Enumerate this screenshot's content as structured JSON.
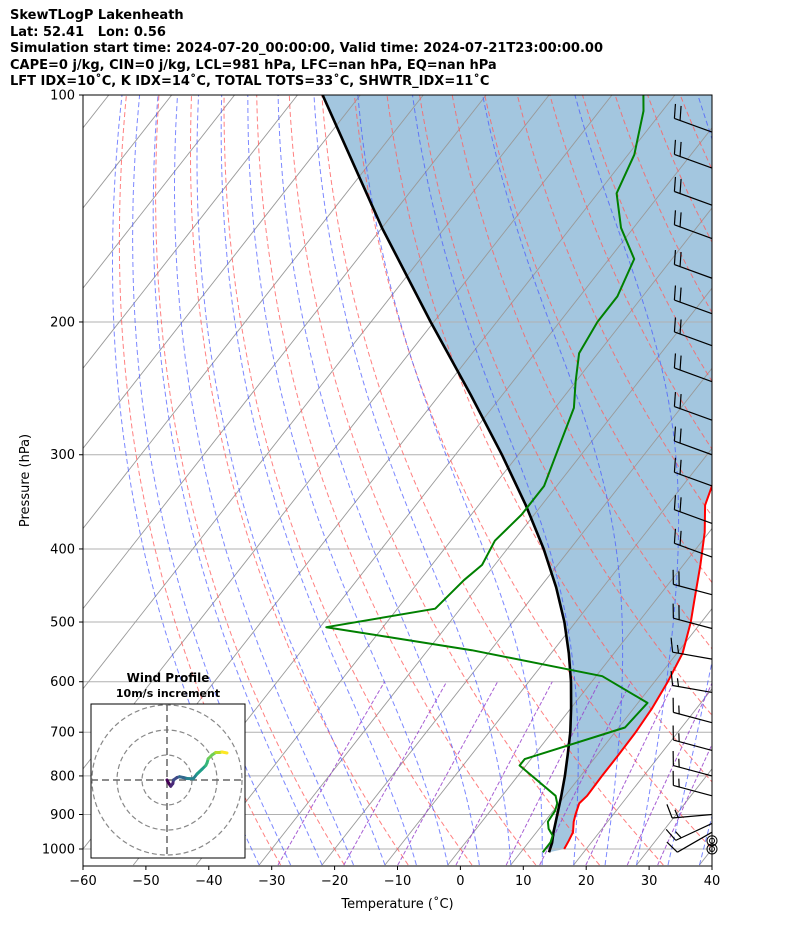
{
  "header": {
    "lines": [
      "SkewTLogP Lakenheath",
      "Lat: 52.41   Lon: 0.56",
      "Simulation start time: 2024-07-20_00:00:00, Valid time: 2024-07-21T23:00:00.00",
      "CAPE=0 j/kg, CIN=0 j/kg, LCL=981 hPa, LFC=nan hPa, EQ=nan hPa",
      "LFT IDX=10˚C, K IDX=14˚C, TOTAL TOTS=33˚C, SHWTR_IDX=11˚C"
    ]
  },
  "chart_data": {
    "type": "line",
    "subtype": "skew-t log-p sounding",
    "xlabel": "Temperature (˚C)",
    "ylabel": "Pressure (hPa)",
    "xlim": [
      -60,
      40
    ],
    "ylim": [
      1050,
      100
    ],
    "y_scale": "log",
    "x_ticks": [
      -60,
      -50,
      -40,
      -30,
      -20,
      -10,
      0,
      10,
      20,
      30,
      40
    ],
    "x_tick_labels": [
      "−60",
      "−50",
      "−40",
      "−30",
      "−20",
      "−10",
      "0",
      "10",
      "20",
      "30",
      "40"
    ],
    "y_ticks": [
      1000,
      900,
      800,
      700,
      600,
      500,
      400,
      300,
      200,
      100
    ],
    "y_tick_labels": [
      "1000",
      "900",
      "800",
      "700",
      "600",
      "500",
      "400",
      "300",
      "200",
      "100"
    ],
    "grid": true,
    "colors": {
      "temperature": "#ff0000",
      "dewpoint": "#008000",
      "parcel": "#000000",
      "shade": "#a3c6df",
      "dry_adiabats": "#ff6060",
      "moist_adiabats": "#4455ff",
      "mixing_ratio": "#9944cc",
      "isotherms": "#999999"
    },
    "series": [
      {
        "key": "temperature",
        "points": [
          [
            16.5,
            1000
          ],
          [
            16.2,
            975
          ],
          [
            15.8,
            950
          ],
          [
            14.6,
            920
          ],
          [
            14,
            900
          ],
          [
            13.2,
            870
          ],
          [
            13.5,
            850
          ],
          [
            13.4,
            800
          ],
          [
            13.4,
            750
          ],
          [
            13.3,
            700
          ],
          [
            12.9,
            650
          ],
          [
            12.1,
            600
          ],
          [
            10.9,
            550
          ],
          [
            8.3,
            500
          ],
          [
            6.3,
            470
          ],
          [
            2.7,
            420
          ],
          [
            -0.7,
            380
          ],
          [
            -4,
            350
          ],
          [
            -6,
            320
          ],
          [
            -7.4,
            300
          ],
          [
            -10,
            280
          ],
          [
            -13,
            260
          ],
          [
            -17,
            240
          ],
          [
            -20.5,
            220
          ],
          [
            -24,
            200
          ],
          [
            -28,
            185
          ],
          [
            -32,
            170
          ],
          [
            -35,
            155
          ],
          [
            -38,
            145
          ],
          [
            -41,
            135
          ],
          [
            -44,
            125
          ],
          [
            -47,
            115
          ],
          [
            -51,
            105
          ],
          [
            -53,
            100
          ]
        ]
      },
      {
        "key": "dewpoint",
        "points": [
          [
            13.5,
            1010
          ],
          [
            13.5,
            980
          ],
          [
            13,
            960
          ],
          [
            11.5,
            940
          ],
          [
            10.5,
            920
          ],
          [
            10.3,
            890
          ],
          [
            9.7,
            870
          ],
          [
            8.5,
            850
          ],
          [
            -1,
            775
          ],
          [
            -1,
            760
          ],
          [
            11,
            690
          ],
          [
            11.5,
            640
          ],
          [
            1,
            590
          ],
          [
            -23,
            545
          ],
          [
            -49,
            508
          ],
          [
            -34,
            480
          ],
          [
            -33,
            440
          ],
          [
            -32,
            420
          ],
          [
            -33,
            390
          ],
          [
            -32,
            360
          ],
          [
            -32,
            330
          ],
          [
            -34,
            300
          ],
          [
            -37,
            260
          ],
          [
            -40,
            240
          ],
          [
            -43,
            220
          ],
          [
            -44,
            200
          ],
          [
            -44,
            185
          ],
          [
            -46,
            165
          ],
          [
            -52,
            150
          ],
          [
            -57,
            135
          ],
          [
            -59,
            120
          ],
          [
            -63,
            105
          ],
          [
            -65,
            100
          ]
        ]
      },
      {
        "key": "parcel",
        "points": [
          [
            14.5,
            1010
          ],
          [
            13.8,
            981
          ],
          [
            12.7,
            950
          ],
          [
            11.1,
            900
          ],
          [
            9.4,
            850
          ],
          [
            7.5,
            800
          ],
          [
            5.3,
            750
          ],
          [
            2.9,
            700
          ],
          [
            0,
            650
          ],
          [
            -3.3,
            600
          ],
          [
            -7.2,
            550
          ],
          [
            -11.8,
            500
          ],
          [
            -17.4,
            450
          ],
          [
            -24.2,
            400
          ],
          [
            -32.5,
            350
          ],
          [
            -42.6,
            300
          ],
          [
            -55,
            250
          ],
          [
            -70.5,
            200
          ],
          [
            -90,
            150
          ],
          [
            -116,
            100
          ]
        ]
      }
    ],
    "inset": {
      "title": "Wind Profile",
      "subtitle": "10m/s increment"
    }
  },
  "wind_barbs": [
    {
      "p": 1000,
      "speed": 0,
      "dir": 0
    },
    {
      "p": 975,
      "speed": 0,
      "dir": 0
    },
    {
      "p": 950,
      "speed": 10,
      "dir": 240
    },
    {
      "p": 925,
      "speed": 15,
      "dir": 245
    },
    {
      "p": 900,
      "speed": 15,
      "dir": 265
    },
    {
      "p": 850,
      "speed": 15,
      "dir": 285
    },
    {
      "p": 800,
      "speed": 15,
      "dir": 285
    },
    {
      "p": 740,
      "speed": 15,
      "dir": 285
    },
    {
      "p": 680,
      "speed": 15,
      "dir": 285
    },
    {
      "p": 620,
      "speed": 15,
      "dir": 280
    },
    {
      "p": 560,
      "speed": 15,
      "dir": 280
    },
    {
      "p": 510,
      "speed": 20,
      "dir": 285
    },
    {
      "p": 460,
      "speed": 20,
      "dir": 285
    },
    {
      "p": 410,
      "speed": 20,
      "dir": 290
    },
    {
      "p": 370,
      "speed": 20,
      "dir": 290
    },
    {
      "p": 330,
      "speed": 20,
      "dir": 290
    },
    {
      "p": 300,
      "speed": 20,
      "dir": 290
    },
    {
      "p": 270,
      "speed": 20,
      "dir": 290
    },
    {
      "p": 240,
      "speed": 20,
      "dir": 290
    },
    {
      "p": 215,
      "speed": 20,
      "dir": 290
    },
    {
      "p": 195,
      "speed": 20,
      "dir": 290
    },
    {
      "p": 175,
      "speed": 20,
      "dir": 290
    },
    {
      "p": 155,
      "speed": 20,
      "dir": 290
    },
    {
      "p": 140,
      "speed": 20,
      "dir": 290
    },
    {
      "p": 125,
      "speed": 20,
      "dir": 290
    },
    {
      "p": 112,
      "speed": 20,
      "dir": 290
    }
  ],
  "hodograph": {
    "u": [
      0,
      0.5,
      1.5,
      2.3,
      2.6,
      4,
      5,
      6.5,
      8,
      10.5,
      12,
      14,
      15.5,
      16,
      16.5,
      18,
      19.5,
      21,
      22,
      23,
      24
    ],
    "v": [
      0,
      -1,
      -2.5,
      -1.5,
      0,
      1,
      1.3,
      1,
      0.6,
      0.5,
      2.4,
      4.3,
      5.8,
      6.8,
      8.5,
      10,
      11,
      11,
      11.2,
      11,
      10.8
    ]
  }
}
